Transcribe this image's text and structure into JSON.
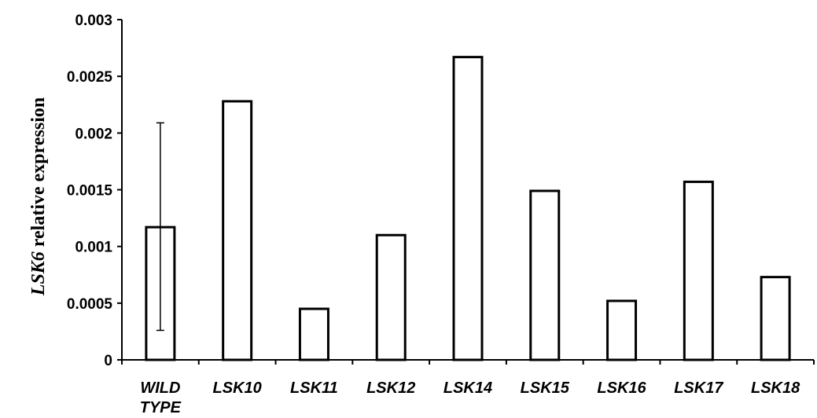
{
  "chart_data": {
    "type": "bar",
    "categories": [
      [
        "WILD",
        "TYPE"
      ],
      [
        "LSK10"
      ],
      [
        "LSK11"
      ],
      [
        "LSK12"
      ],
      [
        "LSK14"
      ],
      [
        "LSK15"
      ],
      [
        "LSK16"
      ],
      [
        "LSK17"
      ],
      [
        "LSK18"
      ]
    ],
    "values": [
      0.00117,
      0.00228,
      0.00045,
      0.0011,
      0.00267,
      0.00149,
      0.00052,
      0.00157,
      0.00073
    ],
    "error_bars": [
      {
        "index": 0,
        "low": 0.00026,
        "high": 0.00209
      }
    ],
    "ylabel_italic": "LSK6",
    "ylabel_rest": " relative expression",
    "xlabel": "",
    "ylim": [
      0,
      0.003
    ],
    "yticks": [
      0,
      0.0005,
      0.001,
      0.0015,
      0.002,
      0.0025,
      0.003
    ],
    "ytick_labels": [
      "0",
      "0.0005",
      "0.001",
      "0.0015",
      "0.002",
      "0.0025",
      "0.003"
    ],
    "grid": false,
    "bar_fill": "#ffffff",
    "bar_stroke": "#000000"
  }
}
